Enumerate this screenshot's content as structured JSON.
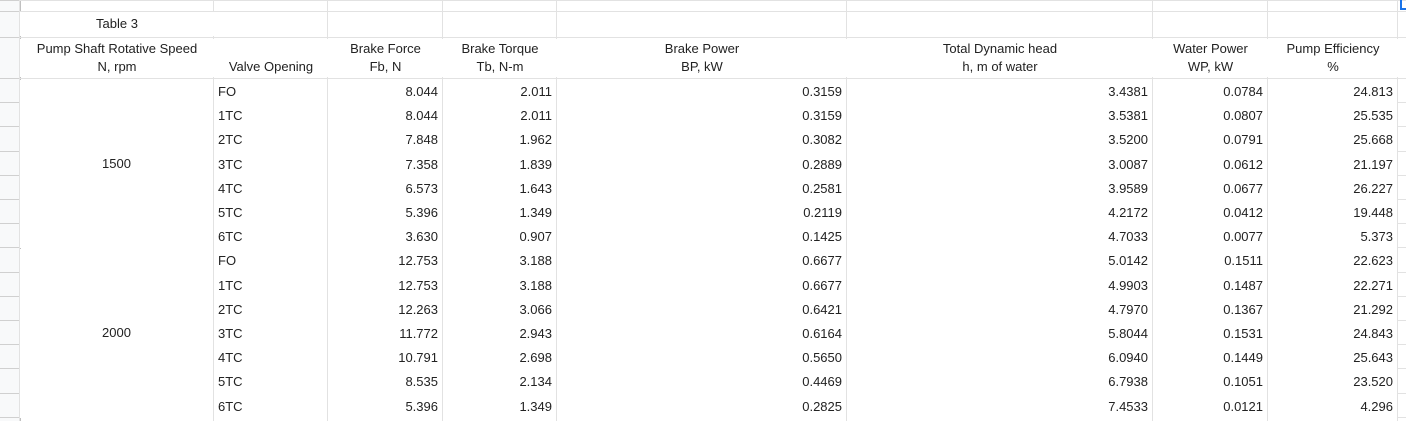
{
  "table": {
    "title": "Table 3",
    "headers": {
      "speed": [
        "Pump Shaft Rotative Speed",
        "N, rpm"
      ],
      "valve": [
        "Valve Opening"
      ],
      "force": [
        "Brake Force",
        "Fb, N"
      ],
      "torque": [
        "Brake Torque",
        "Tb, N-m"
      ],
      "power": [
        "Brake Power",
        "BP, kW"
      ],
      "head": [
        "Total Dynamic head",
        "h, m of water"
      ],
      "water": [
        "Water Power",
        "WP, kW"
      ],
      "eff": [
        "Pump Efficiency",
        "%"
      ]
    },
    "groups": [
      {
        "speed": "1500",
        "rows": [
          [
            "FO",
            "8.044",
            "2.011",
            "0.3159",
            "3.4381",
            "0.0784",
            "24.813"
          ],
          [
            "1TC",
            "8.044",
            "2.011",
            "0.3159",
            "3.5381",
            "0.0807",
            "25.535"
          ],
          [
            "2TC",
            "7.848",
            "1.962",
            "0.3082",
            "3.5200",
            "0.0791",
            "25.668"
          ],
          [
            "3TC",
            "7.358",
            "1.839",
            "0.2889",
            "3.0087",
            "0.0612",
            "21.197"
          ],
          [
            "4TC",
            "6.573",
            "1.643",
            "0.2581",
            "3.9589",
            "0.0677",
            "26.227"
          ],
          [
            "5TC",
            "5.396",
            "1.349",
            "0.2119",
            "4.2172",
            "0.0412",
            "19.448"
          ],
          [
            "6TC",
            "3.630",
            "0.907",
            "0.1425",
            "4.7033",
            "0.0077",
            "5.373"
          ]
        ]
      },
      {
        "speed": "2000",
        "rows": [
          [
            "FO",
            "12.753",
            "3.188",
            "0.6677",
            "5.0142",
            "0.1511",
            "22.623"
          ],
          [
            "1TC",
            "12.753",
            "3.188",
            "0.6677",
            "4.9903",
            "0.1487",
            "22.271"
          ],
          [
            "2TC",
            "12.263",
            "3.066",
            "0.6421",
            "4.7970",
            "0.1367",
            "21.292"
          ],
          [
            "3TC",
            "11.772",
            "2.943",
            "0.6164",
            "5.8044",
            "0.1531",
            "24.843"
          ],
          [
            "4TC",
            "10.791",
            "2.698",
            "0.5650",
            "6.0940",
            "0.1449",
            "25.643"
          ],
          [
            "5TC",
            "8.535",
            "2.134",
            "0.4469",
            "6.7938",
            "0.1051",
            "23.520"
          ],
          [
            "6TC",
            "5.396",
            "1.349",
            "0.2825",
            "7.4533",
            "0.0121",
            "4.296"
          ]
        ]
      }
    ]
  }
}
